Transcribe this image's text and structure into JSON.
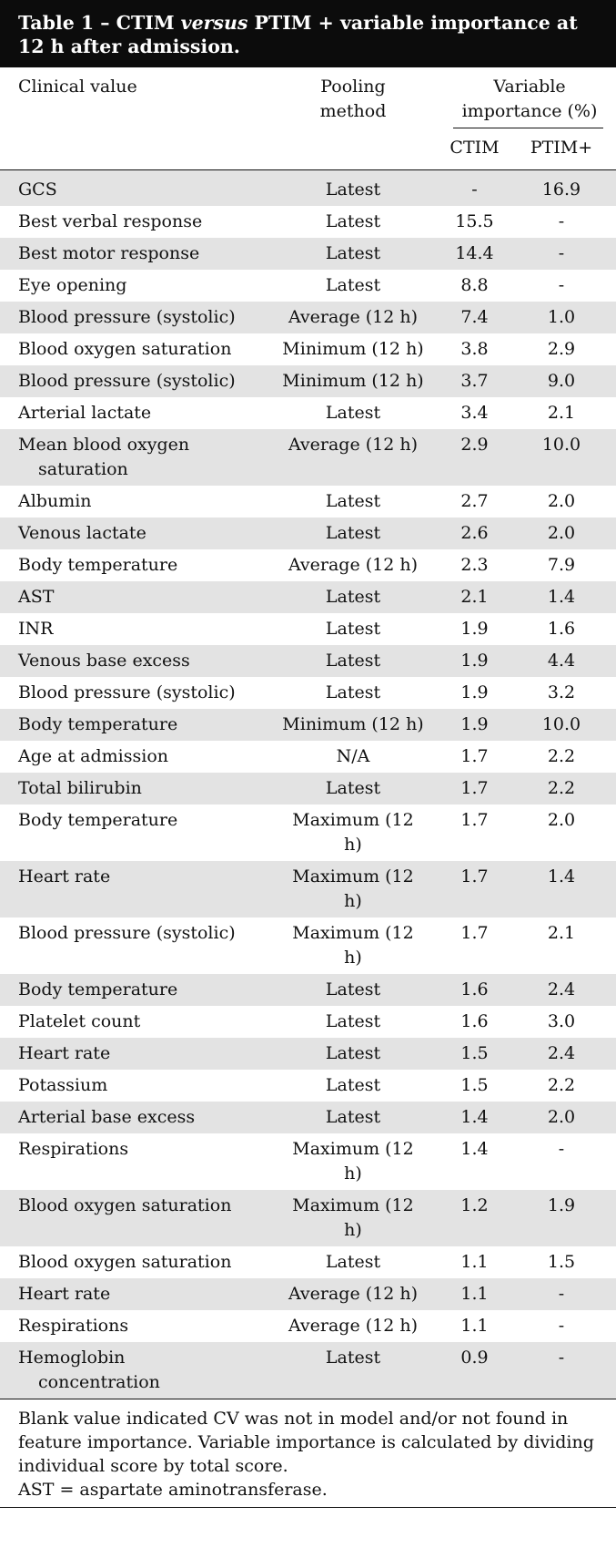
{
  "caption": {
    "prefix": "Table 1 – CTIM ",
    "italic": "versus",
    "suffix": " PTIM + variable importance at 12 h after admission."
  },
  "header": {
    "clinical_value": "Clinical value",
    "pooling_method": "Pooling method",
    "variable_importance": "Variable importance (%)",
    "ctim": "CTIM",
    "ptim": "PTIM+"
  },
  "rows": [
    {
      "cv": "GCS",
      "pool": "Latest",
      "ctim": "-",
      "ptim": "16.9"
    },
    {
      "cv": "Best verbal response",
      "pool": "Latest",
      "ctim": "15.5",
      "ptim": "-"
    },
    {
      "cv": "Best motor response",
      "pool": "Latest",
      "ctim": "14.4",
      "ptim": "-"
    },
    {
      "cv": "Eye opening",
      "pool": "Latest",
      "ctim": "8.8",
      "ptim": "-"
    },
    {
      "cv": "Blood pressure (systolic)",
      "pool": "Average (12 h)",
      "ctim": "7.4",
      "ptim": "1.0"
    },
    {
      "cv": "Blood oxygen saturation",
      "pool": "Minimum (12 h)",
      "ctim": "3.8",
      "ptim": "2.9"
    },
    {
      "cv": "Blood pressure (systolic)",
      "pool": "Minimum (12 h)",
      "ctim": "3.7",
      "ptim": "9.0"
    },
    {
      "cv": "Arterial lactate",
      "pool": "Latest",
      "ctim": "3.4",
      "ptim": "2.1"
    },
    {
      "cv": "Mean blood oxygen",
      "cv2": "saturation",
      "pool": "Average (12 h)",
      "ctim": "2.9",
      "ptim": "10.0"
    },
    {
      "cv": "Albumin",
      "pool": "Latest",
      "ctim": "2.7",
      "ptim": "2.0"
    },
    {
      "cv": "Venous lactate",
      "pool": "Latest",
      "ctim": "2.6",
      "ptim": "2.0"
    },
    {
      "cv": "Body temperature",
      "pool": "Average (12 h)",
      "ctim": "2.3",
      "ptim": "7.9"
    },
    {
      "cv": "AST",
      "pool": "Latest",
      "ctim": "2.1",
      "ptim": "1.4"
    },
    {
      "cv": "INR",
      "pool": "Latest",
      "ctim": "1.9",
      "ptim": "1.6"
    },
    {
      "cv": "Venous base excess",
      "pool": "Latest",
      "ctim": "1.9",
      "ptim": "4.4"
    },
    {
      "cv": "Blood pressure (systolic)",
      "pool": "Latest",
      "ctim": "1.9",
      "ptim": "3.2"
    },
    {
      "cv": "Body temperature",
      "pool": "Minimum (12 h)",
      "ctim": "1.9",
      "ptim": "10.0"
    },
    {
      "cv": "Age at admission",
      "pool": "N/A",
      "ctim": "1.7",
      "ptim": "2.2"
    },
    {
      "cv": "Total bilirubin",
      "pool": "Latest",
      "ctim": "1.7",
      "ptim": "2.2"
    },
    {
      "cv": "Body temperature",
      "pool": "Maximum (12",
      "pool2": "h)",
      "ctim": "1.7",
      "ptim": "2.0"
    },
    {
      "cv": "Heart rate",
      "pool": "Maximum (12",
      "pool2": "h)",
      "ctim": "1.7",
      "ptim": "1.4"
    },
    {
      "cv": "Blood pressure (systolic)",
      "pool": "Maximum (12",
      "pool2": "h)",
      "ctim": "1.7",
      "ptim": "2.1"
    },
    {
      "cv": "Body temperature",
      "pool": "Latest",
      "ctim": "1.6",
      "ptim": "2.4"
    },
    {
      "cv": "Platelet count",
      "pool": "Latest",
      "ctim": "1.6",
      "ptim": "3.0"
    },
    {
      "cv": "Heart rate",
      "pool": "Latest",
      "ctim": "1.5",
      "ptim": "2.4"
    },
    {
      "cv": "Potassium",
      "pool": "Latest",
      "ctim": "1.5",
      "ptim": "2.2"
    },
    {
      "cv": "Arterial base excess",
      "pool": "Latest",
      "ctim": "1.4",
      "ptim": "2.0"
    },
    {
      "cv": "Respirations",
      "pool": "Maximum (12",
      "pool2": "h)",
      "ctim": "1.4",
      "ptim": "-"
    },
    {
      "cv": "Blood oxygen saturation",
      "pool": "Maximum (12",
      "pool2": "h)",
      "ctim": "1.2",
      "ptim": "1.9"
    },
    {
      "cv": "Blood oxygen saturation",
      "pool": "Latest",
      "ctim": "1.1",
      "ptim": "1.5"
    },
    {
      "cv": "Heart rate",
      "pool": "Average (12 h)",
      "ctim": "1.1",
      "ptim": "-"
    },
    {
      "cv": "Respirations",
      "pool": "Average (12 h)",
      "ctim": "1.1",
      "ptim": "-"
    },
    {
      "cv": "Hemoglobin",
      "cv2": "concentration",
      "pool": "Latest",
      "ctim": "0.9",
      "ptim": "-"
    }
  ],
  "footnote": {
    "line1": "Blank value indicated CV was not in model and/or not found in feature importance. Variable importance is calculated by dividing individual score by total score.",
    "line2": "AST = aspartate aminotransferase."
  }
}
